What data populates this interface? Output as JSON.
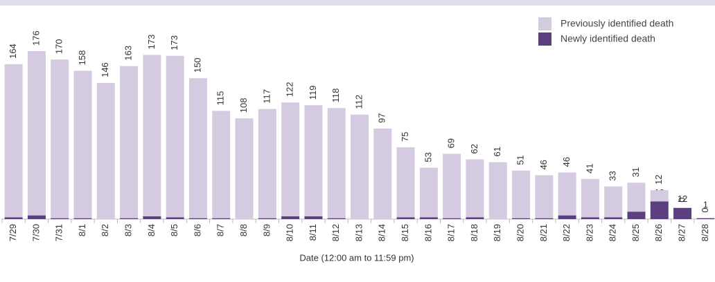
{
  "chart_data": {
    "type": "stacked_bar",
    "x_label": "Date (12:00 am to 11:59 pm)",
    "categories": [
      "7/29",
      "7/30",
      "7/31",
      "8/1",
      "8/2",
      "8/3",
      "8/4",
      "8/5",
      "8/6",
      "8/7",
      "8/8",
      "8/9",
      "8/10",
      "8/11",
      "8/12",
      "8/13",
      "8/14",
      "8/15",
      "8/16",
      "8/17",
      "8/18",
      "8/19",
      "8/20",
      "8/21",
      "8/22",
      "8/23",
      "8/24",
      "8/25",
      "8/26",
      "8/27",
      "8/28"
    ],
    "series": [
      {
        "name": "Newly identified death",
        "color": "#5b3f7e",
        "values": [
          2,
          4,
          1,
          1,
          null,
          1,
          3,
          2,
          1,
          1,
          null,
          1,
          3,
          3,
          1,
          null,
          null,
          2,
          2,
          1,
          2,
          null,
          1,
          1,
          4,
          2,
          2,
          8,
          19,
          12,
          1
        ]
      },
      {
        "name": "Previously identified death",
        "color": "#d5cbe1",
        "values": [
          164,
          176,
          170,
          158,
          146,
          163,
          173,
          173,
          150,
          115,
          108,
          117,
          122,
          119,
          118,
          112,
          97,
          75,
          53,
          69,
          62,
          61,
          51,
          46,
          46,
          41,
          33,
          31,
          12,
          0,
          0
        ]
      }
    ],
    "ylim": [
      0,
      200
    ],
    "legend": "top-right"
  }
}
